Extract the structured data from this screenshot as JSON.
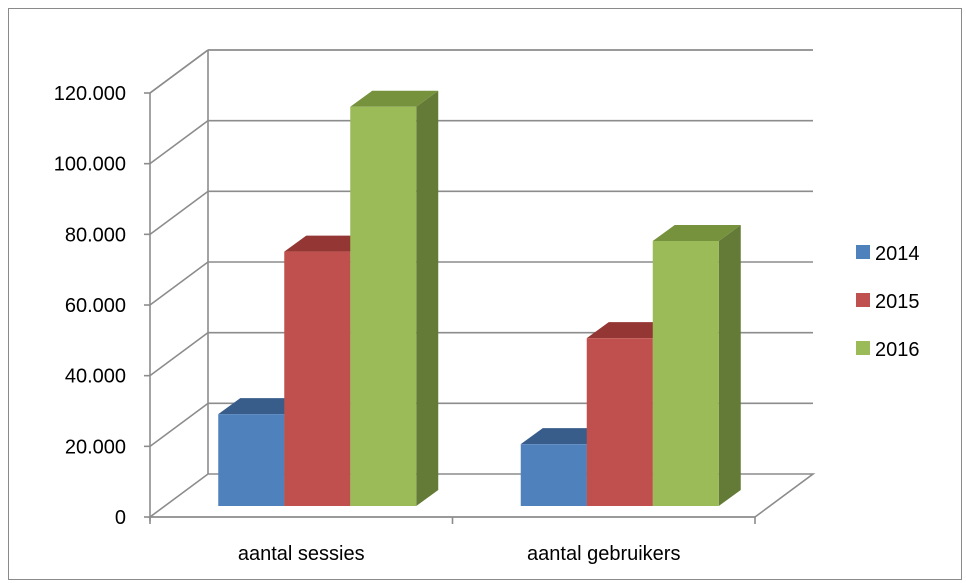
{
  "chart_data": {
    "type": "bar",
    "style": "3d-clustered-column",
    "categories": [
      "aantal sessies",
      "aantal gebruikers"
    ],
    "series": [
      {
        "name": "2014",
        "values": [
          26000,
          17500
        ],
        "color": "#4f81bd",
        "top_color": "#385d8a",
        "side_color": "#2c4d75"
      },
      {
        "name": "2015",
        "values": [
          72000,
          47500
        ],
        "color": "#c0504d",
        "top_color": "#943634",
        "side_color": "#8c3836"
      },
      {
        "name": "2016",
        "values": [
          113000,
          75000
        ],
        "color": "#9bbb59",
        "top_color": "#76923c",
        "side_color": "#637b37"
      }
    ],
    "y_ticks": [
      "0",
      "20.000",
      "40.000",
      "60.000",
      "80.000",
      "100.000",
      "120.000"
    ],
    "ylim": [
      0,
      120000
    ],
    "title": "",
    "xlabel": "",
    "ylabel": "",
    "grid": true,
    "legend_position": "right"
  }
}
